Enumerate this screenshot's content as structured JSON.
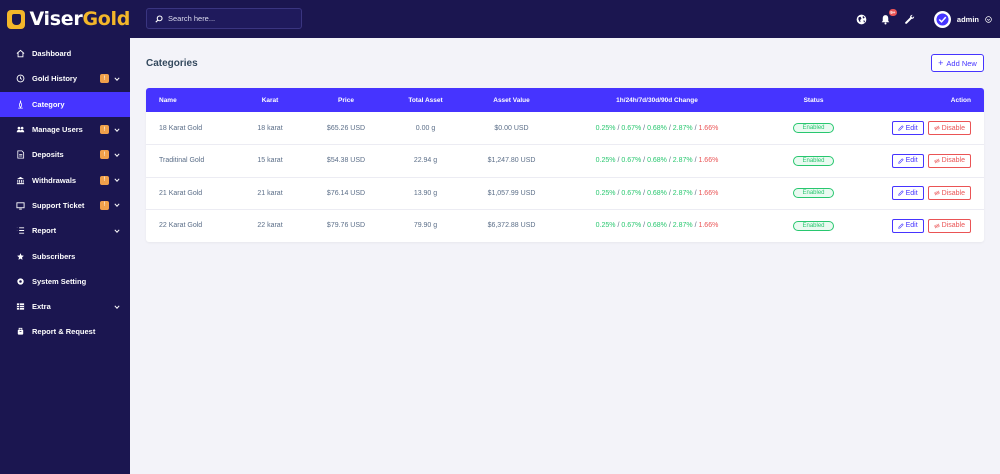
{
  "brand": {
    "name_part1": "Viser",
    "name_part2": "Gold"
  },
  "sidebar": {
    "items": [
      {
        "label": "Dashboard",
        "icon": "home-icon",
        "badge": "",
        "has_chevron": false,
        "active": false
      },
      {
        "label": "Gold History",
        "icon": "history-icon",
        "badge": "!",
        "has_chevron": true,
        "active": false
      },
      {
        "label": "Category",
        "icon": "category-icon",
        "badge": "",
        "has_chevron": false,
        "active": true
      },
      {
        "label": "Manage Users",
        "icon": "users-icon",
        "badge": "!",
        "has_chevron": true,
        "active": false
      },
      {
        "label": "Deposits",
        "icon": "deposit-icon",
        "badge": "!",
        "has_chevron": true,
        "active": false
      },
      {
        "label": "Withdrawals",
        "icon": "bank-icon",
        "badge": "!",
        "has_chevron": true,
        "active": false
      },
      {
        "label": "Support Ticket",
        "icon": "ticket-icon",
        "badge": "!",
        "has_chevron": true,
        "active": false
      },
      {
        "label": "Report",
        "icon": "list-icon",
        "badge": "",
        "has_chevron": true,
        "active": false
      },
      {
        "label": "Subscribers",
        "icon": "subscribers-icon",
        "badge": "",
        "has_chevron": false,
        "active": false
      },
      {
        "label": "System Setting",
        "icon": "gear-icon",
        "badge": "",
        "has_chevron": false,
        "active": false
      },
      {
        "label": "Extra",
        "icon": "server-icon",
        "badge": "",
        "has_chevron": true,
        "active": false
      },
      {
        "label": "Report & Request",
        "icon": "bug-icon",
        "badge": "",
        "has_chevron": false,
        "active": false
      }
    ]
  },
  "topbar": {
    "search_placeholder": "Search here...",
    "notification_count": "9+",
    "username": "admin"
  },
  "page": {
    "title": "Categories",
    "add_button_label": "Add New"
  },
  "table": {
    "headers": {
      "name": "Name",
      "karat": "Karat",
      "price": "Price",
      "total_asset": "Total Asset",
      "asset_value": "Asset Value",
      "change": "1h/24h/7d/30d/90d Change",
      "status": "Status",
      "action": "Action"
    },
    "rows": [
      {
        "name": "18 Karat Gold",
        "karat": "18 karat",
        "price": "$65.26 USD",
        "total_asset": "0.00 g",
        "asset_value": "$0.00 USD",
        "changes": [
          "0.25%",
          "0.67%",
          "0.68%",
          "2.87%",
          "1.66%"
        ],
        "status": "Enabled"
      },
      {
        "name": "Traditinal Gold",
        "karat": "15 karat",
        "price": "$54.38 USD",
        "total_asset": "22.94 g",
        "asset_value": "$1,247.80 USD",
        "changes": [
          "0.25%",
          "0.67%",
          "0.68%",
          "2.87%",
          "1.66%"
        ],
        "status": "Enabled"
      },
      {
        "name": "21 Karat Gold",
        "karat": "21 karat",
        "price": "$76.14 USD",
        "total_asset": "13.90 g",
        "asset_value": "$1,057.99 USD",
        "changes": [
          "0.25%",
          "0.67%",
          "0.68%",
          "2.87%",
          "1.66%"
        ],
        "status": "Enabled"
      },
      {
        "name": "22 Karat Gold",
        "karat": "22 karat",
        "price": "$79.76 USD",
        "total_asset": "79.90 g",
        "asset_value": "$6,372.88 USD",
        "changes": [
          "0.25%",
          "0.67%",
          "0.68%",
          "2.87%",
          "1.66%"
        ],
        "status": "Enabled"
      }
    ],
    "change_separator": " / ",
    "edit_label": "Edit",
    "disable_label": "Disable"
  },
  "colors": {
    "sidebar_bg": "#1b1650",
    "accent": "#4634ff",
    "brand_gold": "#f3b62a",
    "positive": "#28c76f",
    "negative": "#ea5455",
    "badge": "#f0a04b"
  }
}
